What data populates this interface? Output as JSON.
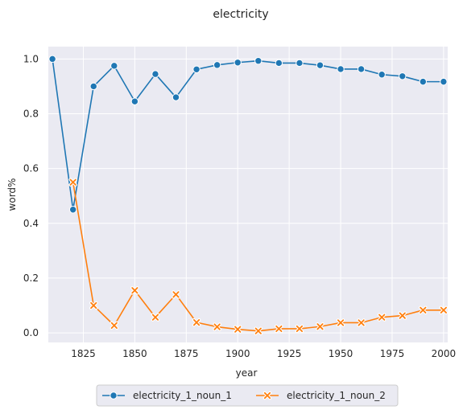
{
  "chart_data": {
    "type": "line",
    "title": "electricity",
    "xlabel": "year",
    "ylabel": "word%",
    "xlim": [
      1808,
      2002
    ],
    "ylim": [
      -0.035,
      1.045
    ],
    "x_ticks": [
      1825,
      1850,
      1875,
      1900,
      1925,
      1950,
      1975,
      2000
    ],
    "y_ticks": [
      0.0,
      0.2,
      0.4,
      0.6,
      0.8,
      1.0
    ],
    "x_tick_labels": [
      "1825",
      "1850",
      "1875",
      "1900",
      "1925",
      "1950",
      "1975",
      "2000"
    ],
    "y_tick_labels": [
      "0.0",
      "0.2",
      "0.4",
      "0.6",
      "0.8",
      "1.0"
    ],
    "grid": true,
    "legend_position": "bottom-center",
    "x": [
      1810,
      1820,
      1830,
      1840,
      1850,
      1860,
      1870,
      1880,
      1890,
      1900,
      1910,
      1920,
      1930,
      1940,
      1950,
      1960,
      1970,
      1980,
      1990,
      2000
    ],
    "series": [
      {
        "name": "electricity_1_noun_1",
        "color": "#1f77b4",
        "marker": "circle",
        "values": [
          1.0,
          0.45,
          0.9,
          0.975,
          0.845,
          0.945,
          0.86,
          0.962,
          0.978,
          0.987,
          0.993,
          0.985,
          0.985,
          0.977,
          0.963,
          0.963,
          0.943,
          0.937,
          0.917,
          0.917
        ]
      },
      {
        "name": "electricity_1_noun_2",
        "color": "#ff7f0e",
        "marker": "x",
        "values": [
          null,
          0.55,
          0.1,
          0.027,
          0.155,
          0.057,
          0.14,
          0.038,
          0.022,
          0.013,
          0.007,
          0.015,
          0.015,
          0.023,
          0.037,
          0.037,
          0.057,
          0.063,
          0.083,
          0.083
        ]
      }
    ]
  }
}
